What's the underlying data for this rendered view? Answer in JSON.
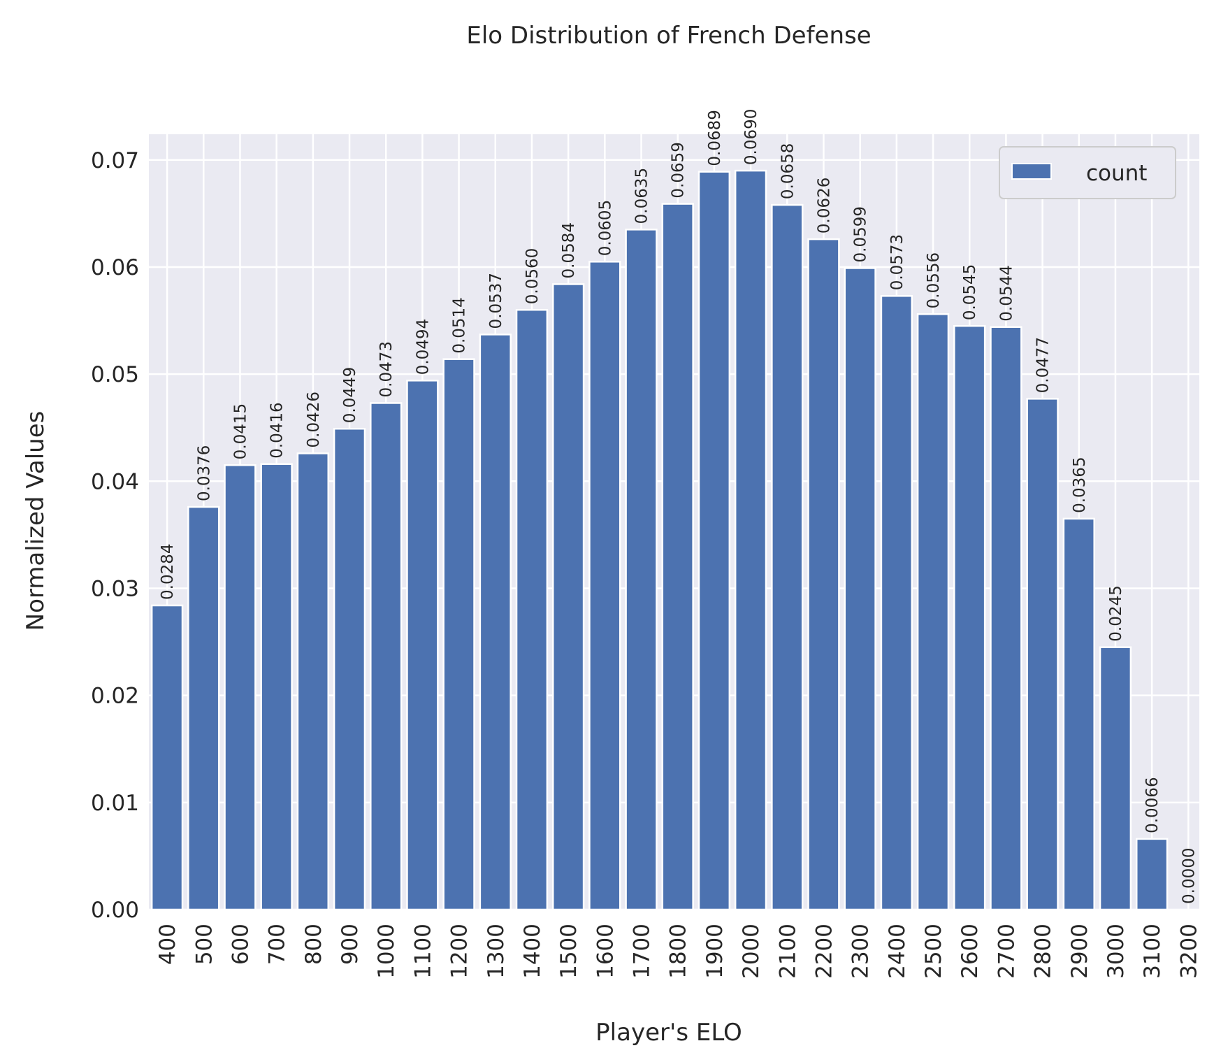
{
  "chart_data": {
    "type": "bar",
    "title": "Elo Distribution of French Defense",
    "xlabel": "Player's ELO",
    "ylabel": "Normalized Values",
    "categories": [
      "400",
      "500",
      "600",
      "700",
      "800",
      "900",
      "1000",
      "1100",
      "1200",
      "1300",
      "1400",
      "1500",
      "1600",
      "1700",
      "1800",
      "1900",
      "2000",
      "2100",
      "2200",
      "2300",
      "2400",
      "2500",
      "2600",
      "2700",
      "2800",
      "2900",
      "3000",
      "3100",
      "3200"
    ],
    "series": [
      {
        "name": "count",
        "color": "#4c72b0",
        "values": [
          0.0284,
          0.0376,
          0.0415,
          0.0416,
          0.0426,
          0.0449,
          0.0473,
          0.0494,
          0.0514,
          0.0537,
          0.056,
          0.0584,
          0.0605,
          0.0635,
          0.0659,
          0.0689,
          0.069,
          0.0658,
          0.0626,
          0.0599,
          0.0573,
          0.0556,
          0.0545,
          0.0544,
          0.0477,
          0.0365,
          0.0245,
          0.0066,
          0.0
        ],
        "labels": [
          "0.0284",
          "0.0376",
          "0.0415",
          "0.0416",
          "0.0426",
          "0.0449",
          "0.0473",
          "0.0494",
          "0.0514",
          "0.0537",
          "0.0560",
          "0.0584",
          "0.0605",
          "0.0635",
          "0.0659",
          "0.0689",
          "0.0690",
          "0.0658",
          "0.0626",
          "0.0599",
          "0.0573",
          "0.0556",
          "0.0545",
          "0.0544",
          "0.0477",
          "0.0365",
          "0.0245",
          "0.0066",
          "0.0000"
        ]
      }
    ],
    "yticks": [
      "0.00",
      "0.01",
      "0.02",
      "0.03",
      "0.04",
      "0.05",
      "0.06",
      "0.07"
    ],
    "ylim": [
      0,
      0.0724
    ],
    "grid": true,
    "legend_position": "top-right",
    "background_color": "#eaeaf2",
    "grid_color": "#ffffff"
  }
}
